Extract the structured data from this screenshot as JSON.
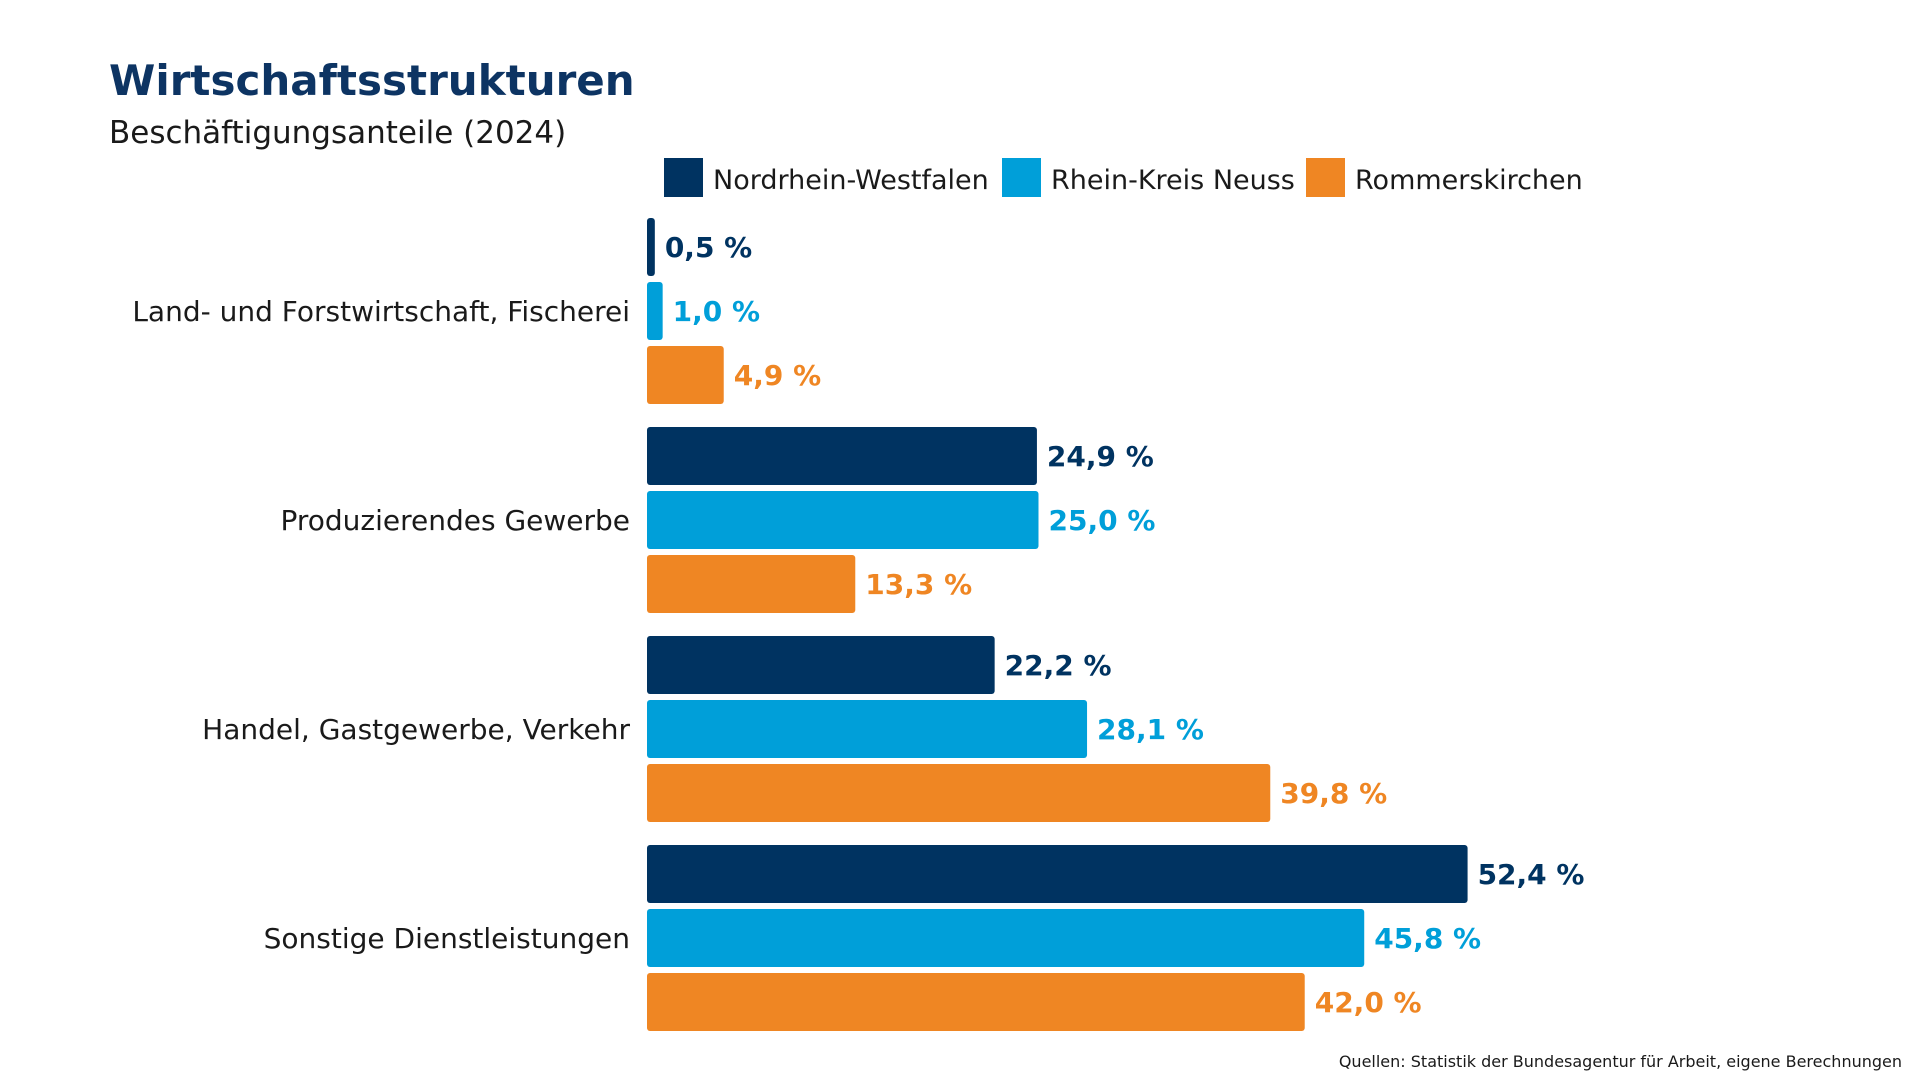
{
  "colors": {
    "title": "#0d3463",
    "text": "#1a1a1a",
    "nrw": "#003361",
    "neuss": "#009fd9",
    "rommerskirchen": "#ef8623"
  },
  "chart_data": {
    "type": "bar",
    "orientation": "horizontal",
    "title": "Wirtschaftsstrukturen",
    "subtitle": "Beschäftigungsanteile (2024)",
    "categories": [
      "Land- und Forstwirtschaft, Fischerei",
      "Produzierendes Gewerbe",
      "Handel, Gastgewerbe, Verkehr",
      "Sonstige Dienstleistungen"
    ],
    "series": [
      {
        "name": "Nordrhein-Westfalen",
        "color": "#003361",
        "values": [
          0.5,
          24.9,
          22.2,
          52.4
        ],
        "labels": [
          "0,5 %",
          "24,9 %",
          "22,2 %",
          "52,4 %"
        ]
      },
      {
        "name": "Rhein-Kreis Neuss",
        "color": "#009fd9",
        "values": [
          1.0,
          25.0,
          28.1,
          45.8
        ],
        "labels": [
          "1,0 %",
          "25,0 %",
          "28,1 %",
          "45,8 %"
        ]
      },
      {
        "name": "Rommerskirchen",
        "color": "#ef8623",
        "values": [
          4.9,
          13.3,
          39.8,
          42.0
        ],
        "labels": [
          "4,9 %",
          "13,3 %",
          "39,8 %",
          "42,0 %"
        ]
      }
    ],
    "xlim": [
      0,
      60
    ],
    "grid": false,
    "legend": "top",
    "source": "Quellen: Statistik der Bundesagentur für Arbeit, eigene Berechnungen"
  }
}
